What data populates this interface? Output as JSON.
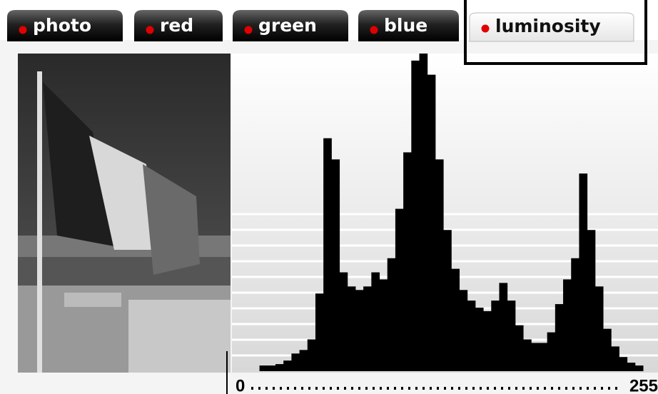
{
  "tabs": [
    "photo",
    "red",
    "green",
    "blue",
    "luminosity"
  ],
  "selected_tab": 4,
  "chart_data": {
    "type": "histogram",
    "color": "#000000",
    "bins": [
      0,
      5,
      10,
      15,
      20,
      25,
      30,
      35,
      40,
      45,
      50,
      55,
      60,
      65,
      70,
      75,
      80,
      85,
      90,
      95,
      100,
      105,
      110,
      115,
      120,
      125,
      130,
      135,
      140,
      145,
      150,
      155,
      160,
      165,
      170,
      175,
      180,
      185,
      190,
      195,
      200,
      205,
      210,
      215,
      220,
      225,
      230,
      235,
      240,
      245,
      250,
      255
    ],
    "values": [
      0,
      0,
      0,
      8,
      8,
      10,
      15,
      25,
      30,
      45,
      110,
      330,
      300,
      140,
      120,
      115,
      120,
      140,
      130,
      160,
      230,
      310,
      440,
      450,
      420,
      300,
      200,
      145,
      115,
      100,
      90,
      85,
      100,
      125,
      100,
      65,
      45,
      40,
      40,
      55,
      95,
      130,
      160,
      280,
      200,
      120,
      60,
      35,
      20,
      12,
      8
    ],
    "xlim": [
      0,
      255
    ],
    "ylim": [
      0,
      450
    ],
    "xticks": [
      0,
      255
    ]
  }
}
